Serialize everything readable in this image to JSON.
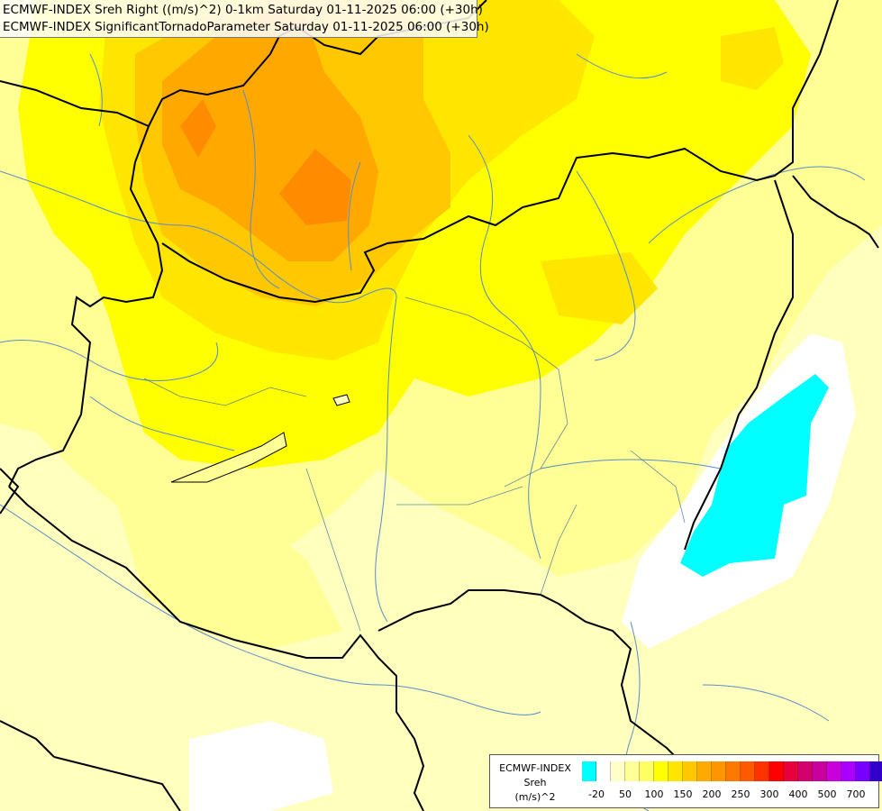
{
  "header": {
    "title_line1": "ECMWF-INDEX Sreh Right ((m/s)^2) 0-1km Saturday 01-11-2025 06:00 (+30h)",
    "title_line2": "ECMWF-INDEX SignificantTornadoParameter Saturday 01-11-2025 06:00 (+30h)"
  },
  "legend": {
    "line1": "ECMWF-INDEX",
    "line2": "Sreh",
    "line3": "(m/s)^2",
    "colors": [
      "#00ffff",
      "#ffffff",
      "#ffffc8",
      "#ffff96",
      "#ffff64",
      "#ffff00",
      "#ffe600",
      "#ffc800",
      "#ffaa00",
      "#ff9600",
      "#ff7800",
      "#ff5a00",
      "#ff3200",
      "#ff0000",
      "#e6003c",
      "#d2006e",
      "#c800a0",
      "#c800dc",
      "#aa00ff",
      "#7800ff",
      "#3200c8",
      "#1e0096",
      "#000064"
    ],
    "ticks": [
      "-20",
      "50",
      "100",
      "150",
      "200",
      "250",
      "300",
      "400",
      "500",
      "700"
    ]
  },
  "palette": {
    "base": "#ffffbe",
    "light_yellow": "#ffff96",
    "yellow": "#ffff00",
    "gold": "#ffe000",
    "amber": "#ffc800",
    "orange": "#ffa800",
    "dark_orange": "#ff8c00",
    "cyan": "#00ffff",
    "white": "#ffffff",
    "border": "#000000",
    "river": "#5a8cc8"
  }
}
